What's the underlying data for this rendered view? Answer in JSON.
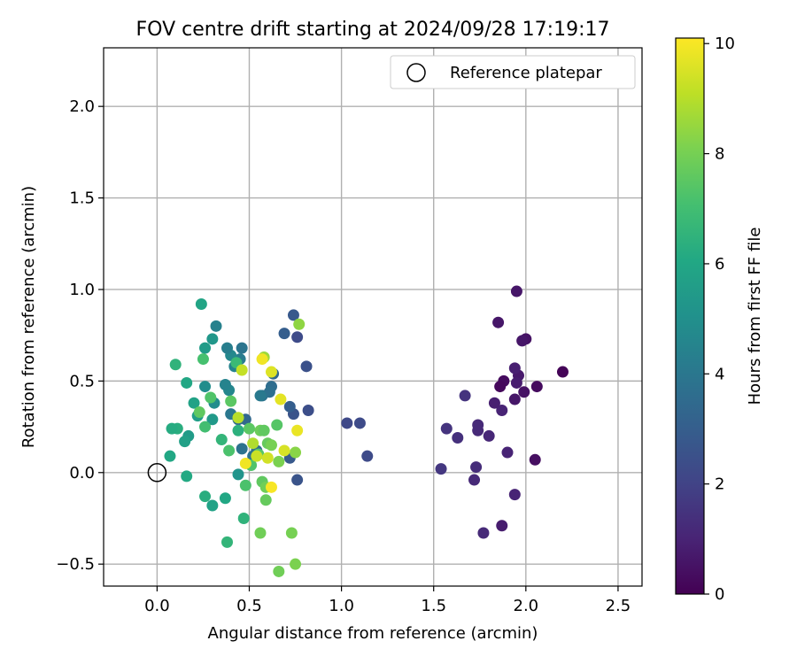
{
  "chart_data": {
    "type": "scatter",
    "title": "FOV centre drift starting at 2024/09/28 17:19:17",
    "xlabel": "Angular distance from reference (arcmin)",
    "ylabel": "Rotation from reference (arcmin)",
    "xlim": [
      -0.29,
      2.63
    ],
    "ylim": [
      -0.62,
      2.32
    ],
    "xticks": [
      0.0,
      0.5,
      1.0,
      1.5,
      2.0,
      2.5
    ],
    "xtick_labels": [
      "0.0",
      "0.5",
      "1.0",
      "1.5",
      "2.0",
      "2.5"
    ],
    "yticks": [
      -0.5,
      0.0,
      0.5,
      1.0,
      1.5,
      2.0
    ],
    "ytick_labels": [
      "−0.5",
      "0.0",
      "0.5",
      "1.0",
      "1.5",
      "2.0"
    ],
    "grid": true,
    "legend": {
      "position": "upper-right",
      "entries": [
        "Reference platepar"
      ]
    },
    "reference_point": {
      "x": 0.0,
      "y": 0.0
    },
    "colorbar": {
      "label": "Hours from first FF file",
      "range": [
        0,
        10.1
      ],
      "ticks": [
        0,
        2,
        4,
        6,
        8,
        10
      ],
      "tick_labels": [
        "0",
        "2",
        "4",
        "6",
        "8",
        "10"
      ],
      "colormap": "viridis"
    },
    "points": [
      {
        "x": 2.2,
        "y": 0.55,
        "c": 0.1
      },
      {
        "x": 2.06,
        "y": 0.47,
        "c": 0.3
      },
      {
        "x": 2.05,
        "y": 0.07,
        "c": 0.4
      },
      {
        "x": 2.0,
        "y": 0.73,
        "c": 0.5
      },
      {
        "x": 1.99,
        "y": 0.44,
        "c": 0.5
      },
      {
        "x": 1.98,
        "y": 0.72,
        "c": 0.6
      },
      {
        "x": 1.96,
        "y": 0.53,
        "c": 0.7
      },
      {
        "x": 1.95,
        "y": 0.99,
        "c": 0.6
      },
      {
        "x": 1.95,
        "y": 0.49,
        "c": 0.8
      },
      {
        "x": 1.94,
        "y": 0.57,
        "c": 0.9
      },
      {
        "x": 1.94,
        "y": 0.4,
        "c": 0.6
      },
      {
        "x": 1.94,
        "y": -0.12,
        "c": 1.0
      },
      {
        "x": 1.9,
        "y": 0.11,
        "c": 1.0
      },
      {
        "x": 1.88,
        "y": 0.5,
        "c": 0.3
      },
      {
        "x": 1.86,
        "y": 0.47,
        "c": 0.2
      },
      {
        "x": 1.85,
        "y": 0.82,
        "c": 0.6
      },
      {
        "x": 1.87,
        "y": 0.34,
        "c": 1.0
      },
      {
        "x": 1.87,
        "y": -0.29,
        "c": 0.8
      },
      {
        "x": 1.83,
        "y": 0.38,
        "c": 0.9
      },
      {
        "x": 1.8,
        "y": 0.2,
        "c": 1.1
      },
      {
        "x": 1.77,
        "y": -0.33,
        "c": 1.2
      },
      {
        "x": 1.74,
        "y": 0.26,
        "c": 1.2
      },
      {
        "x": 1.74,
        "y": 0.23,
        "c": 1.2
      },
      {
        "x": 1.73,
        "y": 0.03,
        "c": 1.3
      },
      {
        "x": 1.72,
        "y": -0.04,
        "c": 1.2
      },
      {
        "x": 1.67,
        "y": 0.42,
        "c": 1.5
      },
      {
        "x": 1.63,
        "y": 0.19,
        "c": 1.4
      },
      {
        "x": 1.57,
        "y": 0.24,
        "c": 1.5
      },
      {
        "x": 1.54,
        "y": 0.02,
        "c": 1.6
      },
      {
        "x": 1.14,
        "y": 0.09,
        "c": 2.3
      },
      {
        "x": 1.1,
        "y": 0.27,
        "c": 2.3
      },
      {
        "x": 1.03,
        "y": 0.27,
        "c": 2.2
      },
      {
        "x": 0.82,
        "y": 0.34,
        "c": 2.4
      },
      {
        "x": 0.81,
        "y": 0.58,
        "c": 2.5
      },
      {
        "x": 0.76,
        "y": 0.74,
        "c": 2.3
      },
      {
        "x": 0.76,
        "y": -0.04,
        "c": 2.6
      },
      {
        "x": 0.74,
        "y": 0.86,
        "c": 2.8
      },
      {
        "x": 0.74,
        "y": 0.32,
        "c": 2.6
      },
      {
        "x": 0.72,
        "y": 0.36,
        "c": 3.0
      },
      {
        "x": 0.72,
        "y": 0.08,
        "c": 2.8
      },
      {
        "x": 0.69,
        "y": 0.76,
        "c": 3.0
      },
      {
        "x": 0.63,
        "y": 0.54,
        "c": 3.4
      },
      {
        "x": 0.62,
        "y": 0.47,
        "c": 3.6
      },
      {
        "x": 0.61,
        "y": 0.44,
        "c": 3.7
      },
      {
        "x": 0.57,
        "y": 0.42,
        "c": 3.8
      },
      {
        "x": 0.56,
        "y": 0.42,
        "c": 4.1
      },
      {
        "x": 0.54,
        "y": 0.12,
        "c": 3.6
      },
      {
        "x": 0.52,
        "y": 0.09,
        "c": 3.8
      },
      {
        "x": 0.48,
        "y": 0.29,
        "c": 3.4
      },
      {
        "x": 0.46,
        "y": 0.68,
        "c": 3.9
      },
      {
        "x": 0.45,
        "y": 0.62,
        "c": 4.2
      },
      {
        "x": 0.44,
        "y": 0.29,
        "c": 3.5
      },
      {
        "x": 0.46,
        "y": 0.13,
        "c": 3.8
      },
      {
        "x": 0.42,
        "y": 0.58,
        "c": 4.5
      },
      {
        "x": 0.4,
        "y": 0.64,
        "c": 4.7
      },
      {
        "x": 0.4,
        "y": 0.32,
        "c": 4.0
      },
      {
        "x": 0.38,
        "y": 0.68,
        "c": 4.3
      },
      {
        "x": 0.39,
        "y": 0.45,
        "c": 4.6
      },
      {
        "x": 0.37,
        "y": 0.48,
        "c": 4.5
      },
      {
        "x": 0.32,
        "y": 0.8,
        "c": 4.4
      },
      {
        "x": 0.31,
        "y": 0.38,
        "c": 4.9
      },
      {
        "x": 0.3,
        "y": 0.73,
        "c": 5.3
      },
      {
        "x": 0.26,
        "y": 0.47,
        "c": 4.9
      },
      {
        "x": 0.3,
        "y": 0.29,
        "c": 5.4
      },
      {
        "x": 0.26,
        "y": 0.68,
        "c": 5.5
      },
      {
        "x": 0.44,
        "y": -0.01,
        "c": 5.2
      },
      {
        "x": 0.24,
        "y": 0.92,
        "c": 5.9
      },
      {
        "x": 0.22,
        "y": 0.31,
        "c": 5.6
      },
      {
        "x": 0.2,
        "y": 0.38,
        "c": 5.8
      },
      {
        "x": 0.17,
        "y": 0.2,
        "c": 5.5
      },
      {
        "x": 0.16,
        "y": 0.49,
        "c": 6.0
      },
      {
        "x": 0.15,
        "y": 0.17,
        "c": 5.7
      },
      {
        "x": 0.16,
        "y": -0.02,
        "c": 6.1
      },
      {
        "x": 0.3,
        "y": -0.18,
        "c": 5.8
      },
      {
        "x": 0.37,
        "y": -0.14,
        "c": 6.0
      },
      {
        "x": 0.26,
        "y": -0.13,
        "c": 6.3
      },
      {
        "x": 0.47,
        "y": -0.25,
        "c": 6.5
      },
      {
        "x": 0.38,
        "y": -0.38,
        "c": 6.6
      },
      {
        "x": 0.1,
        "y": 0.59,
        "c": 6.5
      },
      {
        "x": 0.11,
        "y": 0.24,
        "c": 6.3
      },
      {
        "x": 0.08,
        "y": 0.24,
        "c": 6.2
      },
      {
        "x": 0.07,
        "y": 0.09,
        "c": 6.0
      },
      {
        "x": 0.44,
        "y": 0.23,
        "c": 6.4
      },
      {
        "x": 0.43,
        "y": 0.6,
        "c": 6.8
      },
      {
        "x": 0.35,
        "y": 0.18,
        "c": 6.6
      },
      {
        "x": 0.26,
        "y": 0.25,
        "c": 7.0
      },
      {
        "x": 0.25,
        "y": 0.62,
        "c": 7.1
      },
      {
        "x": 0.29,
        "y": 0.41,
        "c": 7.3
      },
      {
        "x": 0.39,
        "y": 0.12,
        "c": 7.2
      },
      {
        "x": 0.4,
        "y": 0.39,
        "c": 7.5
      },
      {
        "x": 0.23,
        "y": 0.33,
        "c": 7.6
      },
      {
        "x": 0.48,
        "y": -0.07,
        "c": 7.2
      },
      {
        "x": 0.55,
        "y": 0.1,
        "c": 7.4
      },
      {
        "x": 0.57,
        "y": -0.05,
        "c": 7.6
      },
      {
        "x": 0.59,
        "y": -0.08,
        "c": 7.9
      },
      {
        "x": 0.59,
        "y": -0.15,
        "c": 7.7
      },
      {
        "x": 0.56,
        "y": -0.33,
        "c": 7.9
      },
      {
        "x": 0.5,
        "y": 0.24,
        "c": 7.5
      },
      {
        "x": 0.51,
        "y": 0.04,
        "c": 7.3
      },
      {
        "x": 0.56,
        "y": 0.23,
        "c": 7.8
      },
      {
        "x": 0.58,
        "y": 0.23,
        "c": 7.6
      },
      {
        "x": 0.6,
        "y": 0.16,
        "c": 7.7
      },
      {
        "x": 0.62,
        "y": 0.15,
        "c": 8.0
      },
      {
        "x": 0.65,
        "y": 0.26,
        "c": 7.4
      },
      {
        "x": 0.66,
        "y": 0.06,
        "c": 8.1
      },
      {
        "x": 0.66,
        "y": -0.54,
        "c": 7.9
      },
      {
        "x": 0.73,
        "y": -0.33,
        "c": 8.0
      },
      {
        "x": 0.75,
        "y": -0.5,
        "c": 8.1
      },
      {
        "x": 0.75,
        "y": 0.11,
        "c": 8.3
      },
      {
        "x": 0.77,
        "y": 0.81,
        "c": 8.4
      },
      {
        "x": 0.58,
        "y": 0.63,
        "c": 8.6
      },
      {
        "x": 0.52,
        "y": 0.16,
        "c": 8.9
      },
      {
        "x": 0.44,
        "y": 0.3,
        "c": 9.0
      },
      {
        "x": 0.54,
        "y": 0.09,
        "c": 9.3
      },
      {
        "x": 0.6,
        "y": 0.08,
        "c": 9.4
      },
      {
        "x": 0.46,
        "y": 0.56,
        "c": 9.2
      },
      {
        "x": 0.62,
        "y": 0.55,
        "c": 9.6
      },
      {
        "x": 0.67,
        "y": 0.4,
        "c": 9.7
      },
      {
        "x": 0.69,
        "y": 0.12,
        "c": 9.5
      },
      {
        "x": 0.76,
        "y": 0.23,
        "c": 9.8
      },
      {
        "x": 0.57,
        "y": 0.62,
        "c": 9.9
      },
      {
        "x": 0.48,
        "y": 0.05,
        "c": 9.9
      },
      {
        "x": 0.62,
        "y": -0.08,
        "c": 10.0
      }
    ]
  }
}
